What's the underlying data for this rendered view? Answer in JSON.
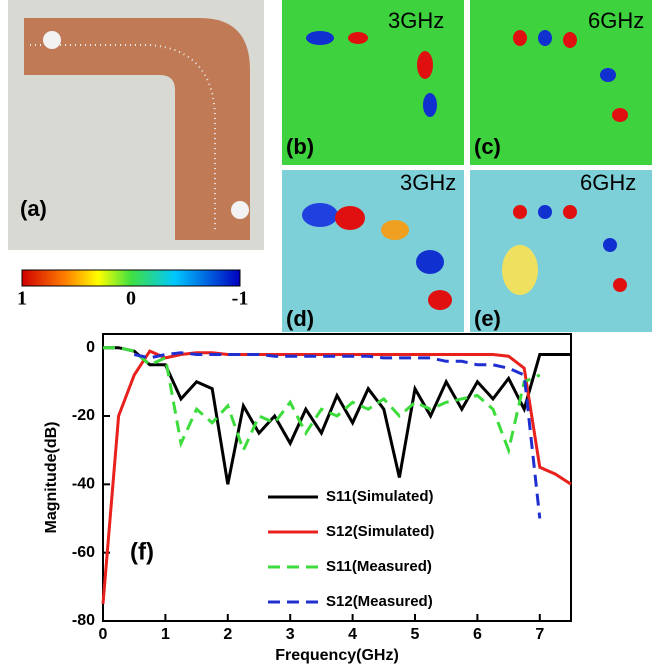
{
  "panels": {
    "a": {
      "label": "(a)"
    },
    "b": {
      "label": "(b)",
      "freq": "3GHz"
    },
    "c": {
      "label": "(c)",
      "freq": "6GHz"
    },
    "d": {
      "label": "(d)",
      "freq": "3GHz"
    },
    "e": {
      "label": "(e)",
      "freq": "6GHz"
    }
  },
  "colorbar": {
    "ticks": [
      1,
      0,
      -1
    ]
  },
  "chart_data": {
    "type": "line",
    "annotation": "(f)",
    "xlabel": "Frequency(GHz)",
    "ylabel": "Magnitude(dB)",
    "x": [
      0,
      0.25,
      0.5,
      0.75,
      1,
      1.25,
      1.5,
      1.75,
      2,
      2.25,
      2.5,
      2.75,
      3,
      3.25,
      3.5,
      3.75,
      4,
      4.25,
      4.5,
      4.75,
      5,
      5.25,
      5.5,
      5.75,
      6,
      6.25,
      6.5,
      6.75,
      7,
      7.25,
      7.5
    ],
    "xlim": [
      0,
      7.5
    ],
    "xticks": [
      0,
      1,
      2,
      3,
      4,
      5,
      6,
      7
    ],
    "ylim": [
      -80,
      4
    ],
    "yticks": [
      0,
      -20,
      -40,
      -60,
      -80
    ],
    "series": [
      {
        "name": "S11(Simulated)",
        "color": "#000000",
        "dashed": false,
        "values": [
          0,
          0,
          -1,
          -5,
          -5,
          -15,
          -10,
          -12,
          -40,
          -17,
          -25,
          -20,
          -28,
          -18,
          -25,
          -14,
          -22,
          -12,
          -18,
          -38,
          -12,
          -20,
          -10,
          -18,
          -10,
          -15,
          -9,
          -18,
          -2,
          -2,
          -2
        ]
      },
      {
        "name": "S12(Simulated)",
        "color": "#e8211d",
        "dashed": false,
        "values": [
          -75,
          -20,
          -8,
          -1,
          -3,
          -2,
          -1.5,
          -1.5,
          -2,
          -2,
          -2,
          -2,
          -2,
          -2,
          -2,
          -2,
          -2,
          -2,
          -2,
          -2,
          -2,
          -2,
          -2,
          -2,
          -2,
          -2,
          -2.5,
          -6,
          -35,
          -37,
          -40
        ]
      },
      {
        "name": "S11(Measured)",
        "color": "#3cdc3c",
        "dashed": true,
        "values": [
          0,
          0,
          -1,
          -5,
          -3,
          -28,
          -18,
          -22,
          -17,
          -30,
          -20,
          -22,
          -16,
          -25,
          -18,
          -20,
          -16,
          -18,
          -15,
          -20,
          -16,
          -18,
          -16,
          -15,
          -14,
          -18,
          -30,
          -10,
          -8,
          null,
          null
        ]
      },
      {
        "name": "S12(Measured)",
        "color": "#1f2fd0",
        "dashed": true,
        "values": [
          null,
          null,
          -2,
          -3,
          -2,
          -1.5,
          -2,
          -2,
          -2,
          -2,
          -2,
          -2.5,
          -2.5,
          -2.5,
          -2.5,
          -2.5,
          -2.5,
          -2.5,
          -3,
          -3,
          -3,
          -3,
          -4,
          -4,
          -5,
          -5,
          -6,
          -8,
          -50,
          null,
          null
        ]
      }
    ]
  }
}
